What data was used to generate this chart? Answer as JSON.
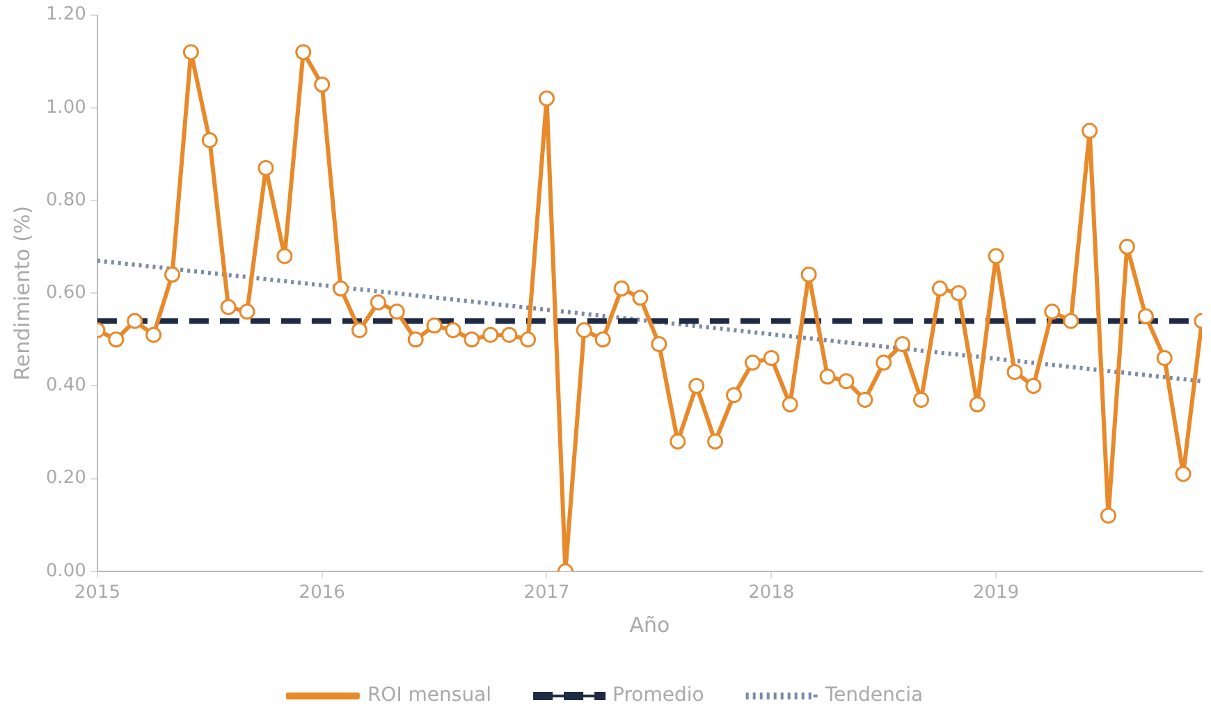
{
  "chart_data": {
    "type": "line",
    "xlabel": "Año",
    "ylabel": "Rendimiento (%)",
    "xlim": [
      "2015-01",
      "2019-12"
    ],
    "xticks": [
      "2015",
      "2016",
      "2017",
      "2018",
      "2019"
    ],
    "ylim": [
      0,
      1.2
    ],
    "yticks": [
      {
        "value": 0,
        "label": "0.00"
      },
      {
        "value": 0.2,
        "label": "0.20"
      },
      {
        "value": 0.4,
        "label": "0.40"
      },
      {
        "value": 0.6,
        "label": "0.60"
      },
      {
        "value": 0.8,
        "label": "0.80"
      },
      {
        "value": 1.0,
        "label": "1.00"
      },
      {
        "value": 1.2,
        "label": "1.20"
      }
    ],
    "x": [
      "2015-01",
      "2015-02",
      "2015-03",
      "2015-04",
      "2015-05",
      "2015-06",
      "2015-07",
      "2015-08",
      "2015-09",
      "2015-10",
      "2015-11",
      "2015-12",
      "2016-01",
      "2016-02",
      "2016-03",
      "2016-04",
      "2016-05",
      "2016-06",
      "2016-07",
      "2016-08",
      "2016-09",
      "2016-10",
      "2016-11",
      "2016-12",
      "2017-01",
      "2017-02",
      "2017-03",
      "2017-04",
      "2017-05",
      "2017-06",
      "2017-07",
      "2017-08",
      "2017-09",
      "2017-10",
      "2017-11",
      "2017-12",
      "2018-01",
      "2018-02",
      "2018-03",
      "2018-04",
      "2018-05",
      "2018-06",
      "2018-07",
      "2018-08",
      "2018-09",
      "2018-10",
      "2018-11",
      "2018-12",
      "2019-01",
      "2019-02",
      "2019-03",
      "2019-04",
      "2019-05",
      "2019-06",
      "2019-07",
      "2019-08",
      "2019-09",
      "2019-10",
      "2019-11",
      "2019-12"
    ],
    "series": [
      {
        "name": "ROI mensual",
        "color": "#e8892a",
        "marker": "circle",
        "line_style": "solid",
        "values": [
          0.52,
          0.5,
          0.54,
          0.51,
          0.64,
          1.12,
          0.93,
          0.57,
          0.56,
          0.87,
          0.68,
          1.12,
          1.05,
          0.61,
          0.52,
          0.58,
          0.56,
          0.5,
          0.53,
          0.52,
          0.5,
          0.51,
          0.51,
          0.5,
          1.02,
          0.0,
          0.52,
          0.5,
          0.61,
          0.59,
          0.49,
          0.28,
          0.4,
          0.28,
          0.38,
          0.45,
          0.46,
          0.36,
          0.64,
          0.42,
          0.41,
          0.37,
          0.45,
          0.49,
          0.37,
          0.61,
          0.6,
          0.36,
          0.68,
          0.43,
          0.4,
          0.56,
          0.54,
          0.95,
          0.12,
          0.7,
          0.55,
          0.46,
          0.21,
          0.54
        ]
      },
      {
        "name": "Tendencia",
        "type": "line",
        "color": "#7b8aa8",
        "marker": "none",
        "line_style": "dotted",
        "x": [
          "2015-01",
          "2019-12"
        ],
        "values": [
          0.67,
          0.41
        ]
      }
    ],
    "ref_lines": [
      {
        "axis": "y",
        "value": 0.54,
        "label": "Promedio",
        "color": "#1f2b45",
        "line_style": "dashed"
      }
    ],
    "grid": false,
    "legend": "bottom"
  }
}
